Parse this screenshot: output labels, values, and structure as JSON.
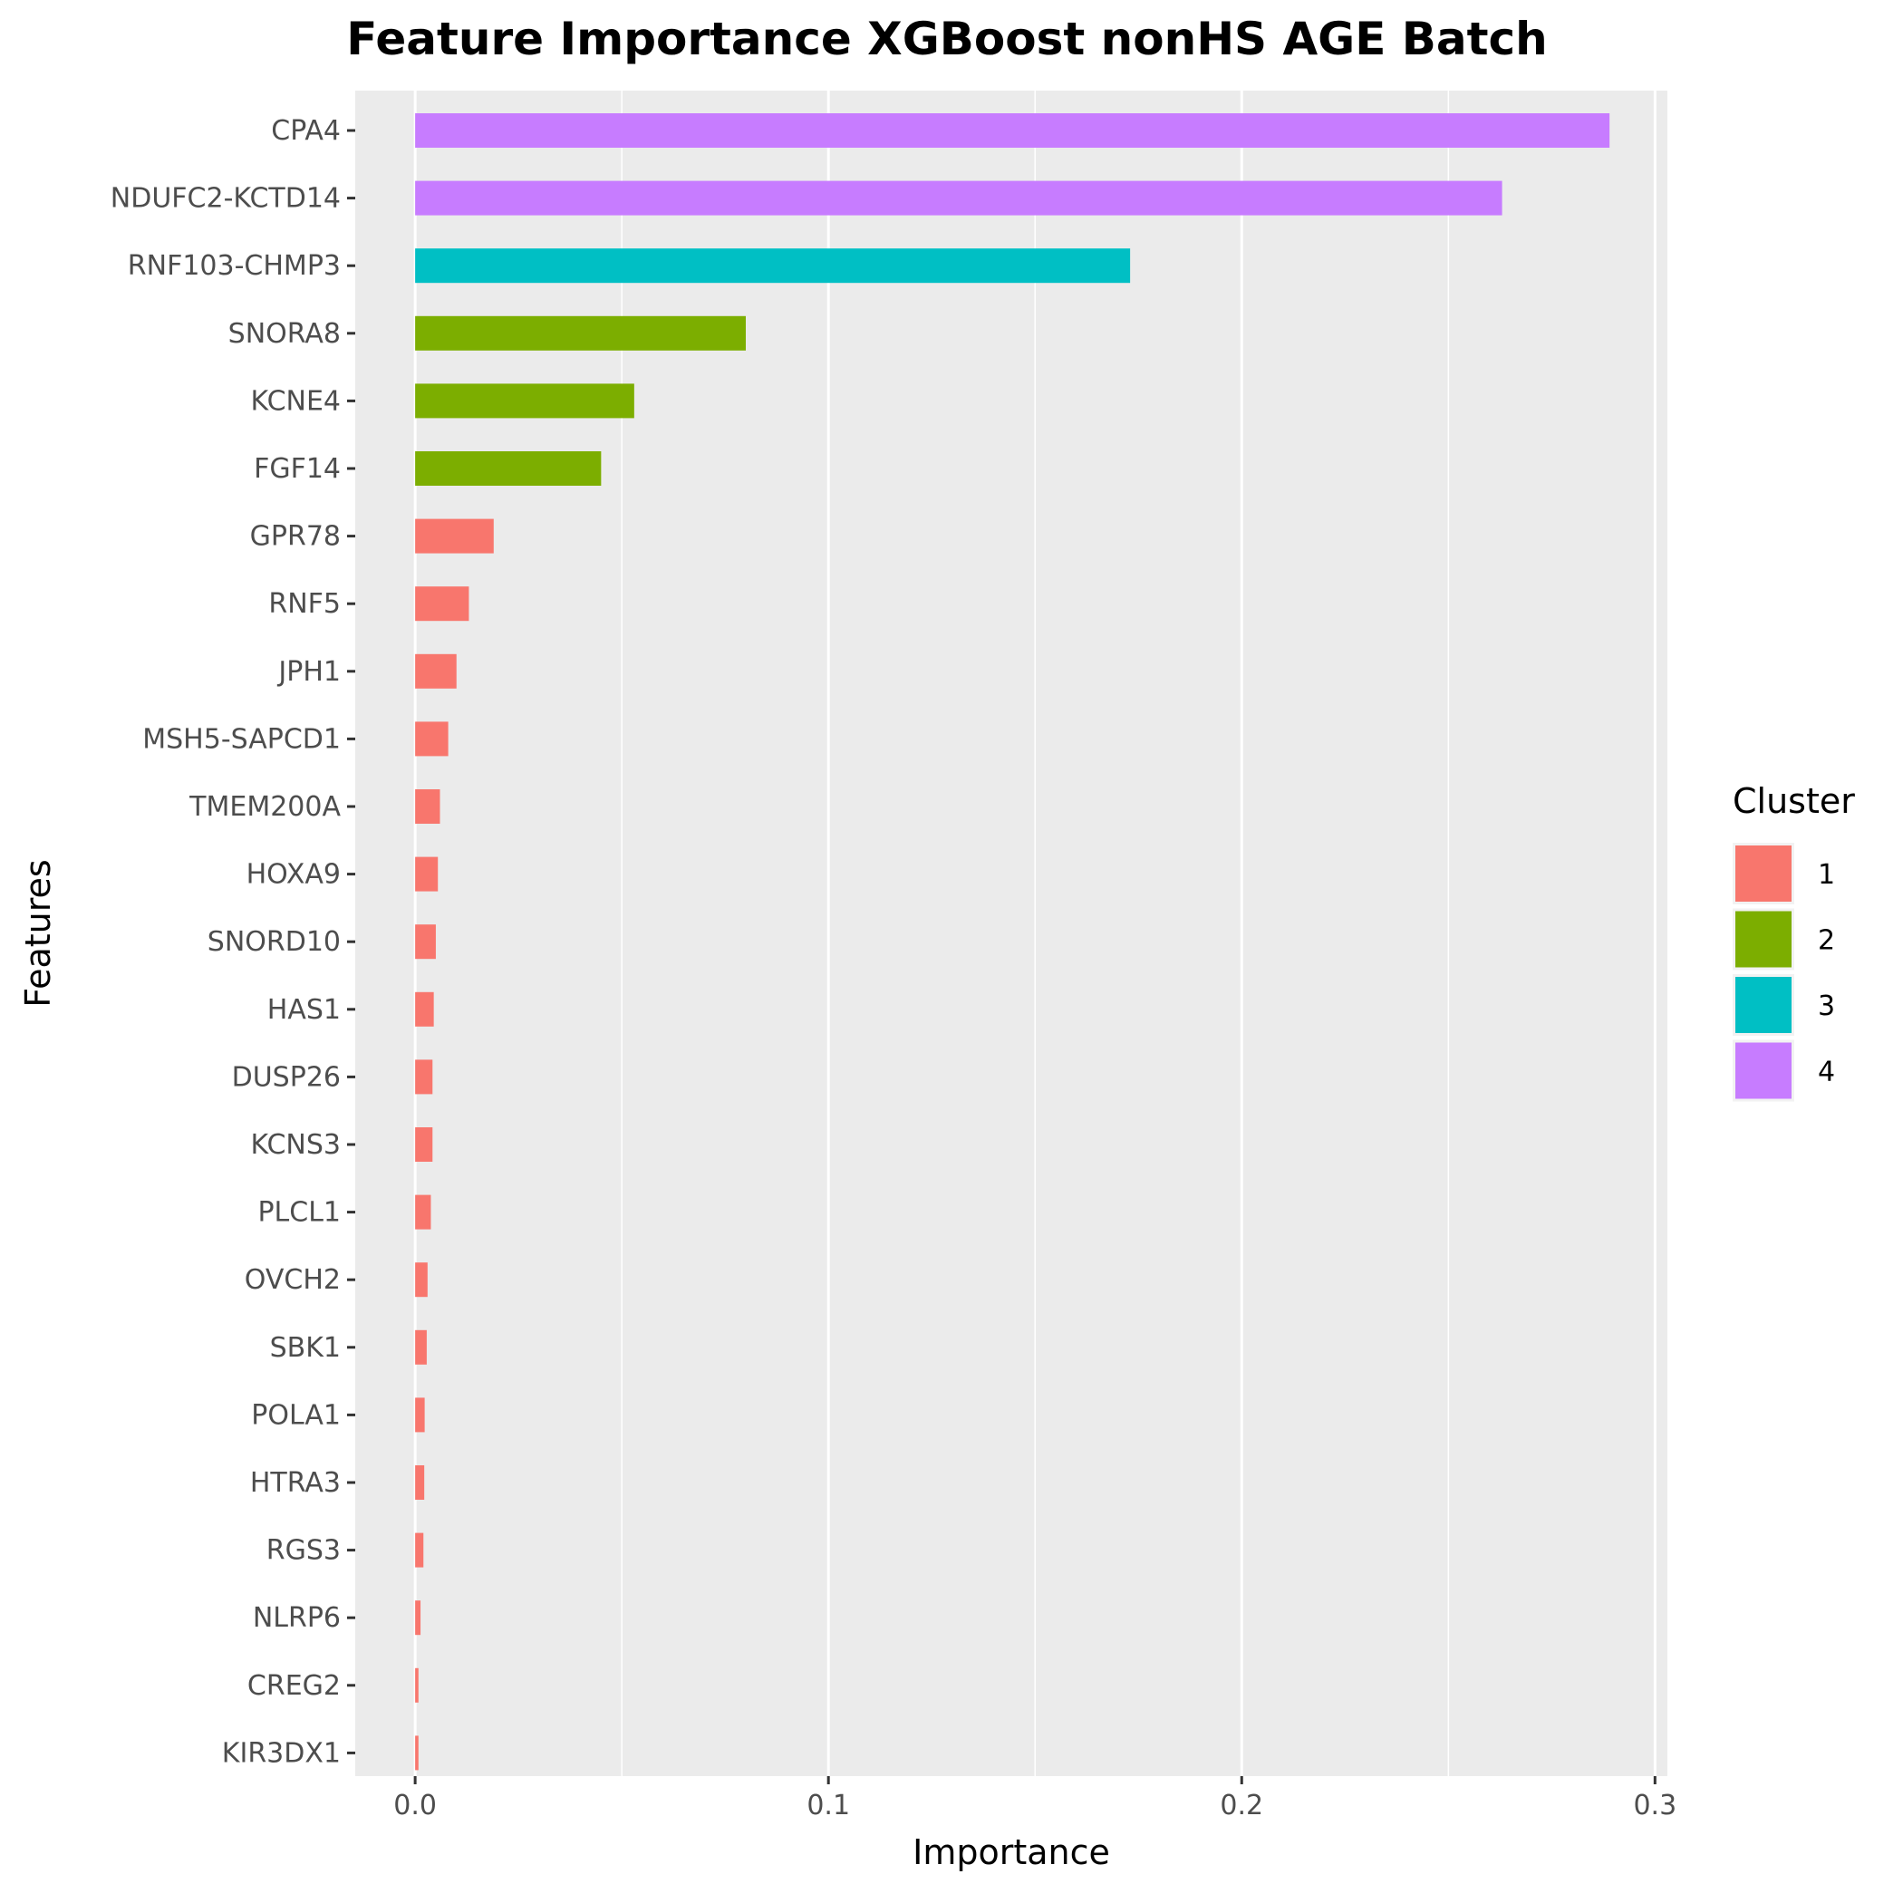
{
  "chart_data": {
    "type": "bar",
    "orientation": "horizontal",
    "title": "Feature Importance XGBoost nonHS AGE Batch",
    "xlabel": "Importance",
    "ylabel": "Features",
    "xlim": [
      -0.0145,
      0.303
    ],
    "xticks": [
      0.0,
      0.1,
      0.2,
      0.3
    ],
    "xtick_labels": [
      "0.0",
      "0.1",
      "0.2",
      "0.3"
    ],
    "grid": true,
    "legend": {
      "title": "Cluster",
      "placement": "right",
      "entries": [
        {
          "label": "1",
          "color": "#F8766D"
        },
        {
          "label": "2",
          "color": "#7CAE00"
        },
        {
          "label": "3",
          "color": "#00BFC4"
        },
        {
          "label": "4",
          "color": "#C77CFF"
        }
      ]
    },
    "categories": [
      "CPA4",
      "NDUFC2-KCTD14",
      "RNF103-CHMP3",
      "SNORA8",
      "KCNE4",
      "FGF14",
      "GPR78",
      "RNF5",
      "JPH1",
      "MSH5-SAPCD1",
      "TMEM200A",
      "HOXA9",
      "SNORD10",
      "HAS1",
      "DUSP26",
      "KCNS3",
      "PLCL1",
      "OVCH2",
      "SBK1",
      "POLA1",
      "HTRA3",
      "RGS3",
      "NLRP6",
      "CREG2",
      "KIR3DX1"
    ],
    "values": [
      0.289,
      0.263,
      0.173,
      0.08,
      0.053,
      0.045,
      0.019,
      0.013,
      0.01,
      0.008,
      0.006,
      0.0055,
      0.005,
      0.0045,
      0.0042,
      0.0042,
      0.0038,
      0.003,
      0.0028,
      0.0023,
      0.0022,
      0.002,
      0.0013,
      0.0008,
      0.0008
    ],
    "clusters": [
      "4",
      "4",
      "3",
      "2",
      "2",
      "2",
      "1",
      "1",
      "1",
      "1",
      "1",
      "1",
      "1",
      "1",
      "1",
      "1",
      "1",
      "1",
      "1",
      "1",
      "1",
      "1",
      "1",
      "1",
      "1"
    ]
  },
  "colors": {
    "panel_background": "#EBEBEB",
    "gridline": "#FFFFFF",
    "tick_mark": "#333333"
  }
}
